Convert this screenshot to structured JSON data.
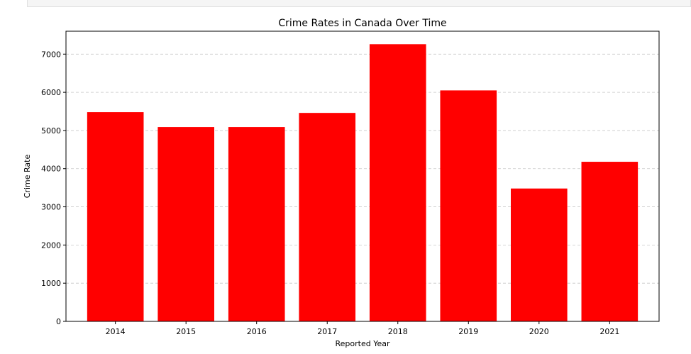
{
  "chart_data": {
    "type": "bar",
    "title": "Crime Rates in Canada Over Time",
    "xlabel": "Reported Year",
    "ylabel": "Crime Rate",
    "categories": [
      "2014",
      "2015",
      "2016",
      "2017",
      "2018",
      "2019",
      "2020",
      "2021"
    ],
    "values": [
      5480,
      5090,
      5090,
      5460,
      7260,
      6050,
      3480,
      4180
    ],
    "ylim": [
      0,
      7600
    ],
    "yticks": [
      0,
      1000,
      2000,
      3000,
      4000,
      5000,
      6000,
      7000
    ],
    "grid": "y-dashed",
    "bar_color": "#ff0000"
  }
}
